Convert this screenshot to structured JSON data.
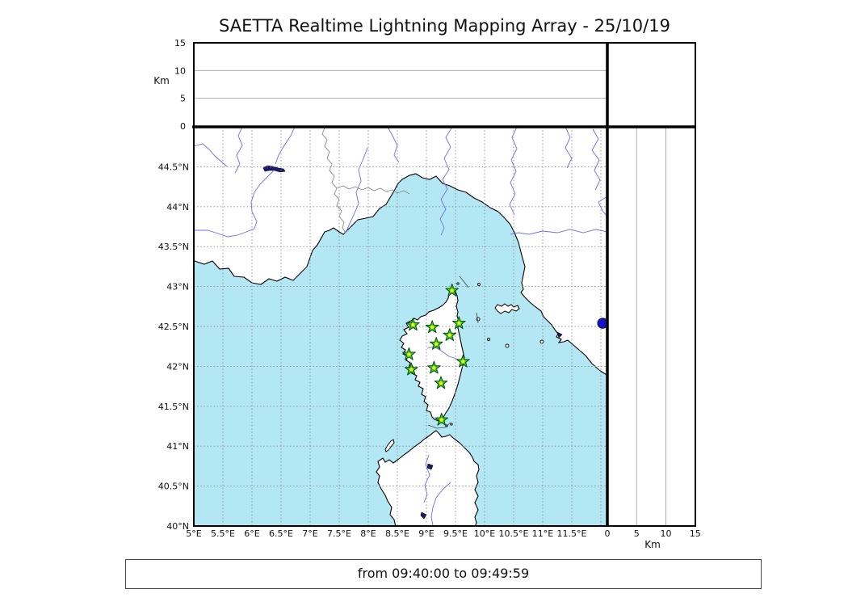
{
  "figure": {
    "title": "SAETTA Realtime Lightning Mapping Array - 25/10/19",
    "status_bar": "from 09:40:00 to 09:49:59"
  },
  "chart_data": {
    "type": "map",
    "title": "SAETTA Realtime Lightning Mapping Array - 25/10/19",
    "time_window": {
      "from": "09:40:00",
      "to": "09:49:59"
    },
    "extent": {
      "lon_min": 5.0,
      "lon_max": 12.1,
      "lat_min": 40.0,
      "lat_max": 45.0
    },
    "altitude_panel": {
      "axis_label": "Km",
      "range_km": [
        0,
        15
      ],
      "tick_labels": [
        "0",
        "5",
        "10",
        "15"
      ],
      "tick_values": [
        0,
        5,
        10,
        15
      ],
      "gridlines_km": [
        5,
        10
      ],
      "data_points": []
    },
    "right_panel": {
      "axis_label": "Km",
      "range_km": [
        0,
        15
      ],
      "tick_labels": [
        "0",
        "5",
        "10",
        "15"
      ],
      "tick_values": [
        0,
        5,
        10,
        15
      ],
      "gridlines_km": [
        5,
        10
      ],
      "data_points": []
    },
    "map_panel": {
      "lon_tick_labels": [
        {
          "label": "5°E",
          "lon": 5.0
        },
        {
          "label": "5.5°E",
          "lon": 5.5
        },
        {
          "label": "6°E",
          "lon": 6.0
        },
        {
          "label": "6.5°E",
          "lon": 6.5
        },
        {
          "label": "7°E",
          "lon": 7.0
        },
        {
          "label": "7.5°E",
          "lon": 7.5
        },
        {
          "label": "8°E",
          "lon": 8.0
        },
        {
          "label": "8.5°E",
          "lon": 8.5
        },
        {
          "label": "9°E",
          "lon": 9.0
        },
        {
          "label": "9.5°E",
          "lon": 9.5
        },
        {
          "label": "10°E",
          "lon": 10.0
        },
        {
          "label": "10.5°E",
          "lon": 10.5
        },
        {
          "label": "11°E",
          "lon": 11.0
        },
        {
          "label": "11.5°E",
          "lon": 11.5
        }
      ],
      "lat_tick_labels": [
        {
          "label": "40°N",
          "lat": 40.0
        },
        {
          "label": "40.5°N",
          "lat": 40.5
        },
        {
          "label": "41°N",
          "lat": 41.0
        },
        {
          "label": "41.5°N",
          "lat": 41.5
        },
        {
          "label": "42°N",
          "lat": 42.0
        },
        {
          "label": "42.5°N",
          "lat": 42.5
        },
        {
          "label": "43°N",
          "lat": 43.0
        },
        {
          "label": "43.5°N",
          "lat": 43.5
        },
        {
          "label": "44°N",
          "lat": 44.0
        },
        {
          "label": "44.5°N",
          "lat": 44.5
        }
      ],
      "lon_gridlines": [
        5.5,
        6.0,
        6.5,
        7.0,
        7.5,
        8.0,
        8.5,
        9.0,
        9.5,
        10.0,
        10.5,
        11.0,
        11.5,
        12.0
      ],
      "lat_gridlines": [
        40.5,
        41.0,
        41.5,
        42.0,
        42.5,
        43.0,
        43.5,
        44.0,
        44.5
      ],
      "stations": [
        {
          "lon": 9.44,
          "lat": 42.95
        },
        {
          "lon": 8.77,
          "lat": 42.52
        },
        {
          "lon": 9.1,
          "lat": 42.49
        },
        {
          "lon": 9.56,
          "lat": 42.54
        },
        {
          "lon": 9.4,
          "lat": 42.39
        },
        {
          "lon": 9.17,
          "lat": 42.28
        },
        {
          "lon": 8.7,
          "lat": 42.15
        },
        {
          "lon": 9.63,
          "lat": 42.06
        },
        {
          "lon": 8.74,
          "lat": 41.96
        },
        {
          "lon": 9.13,
          "lat": 41.98
        },
        {
          "lon": 9.25,
          "lat": 41.79
        },
        {
          "lon": 9.26,
          "lat": 41.33
        }
      ],
      "lightning_sources": [],
      "lake_marker": {
        "lon": 12.03,
        "lat": 42.54
      }
    },
    "colors": {
      "sea": "#b3e7f4",
      "land": "#ffffff",
      "coast": "#000000",
      "river": "#6f6fe8",
      "border": "#8a8a8a",
      "grid": "#8c8c8c",
      "panel_grid": "#9a9a9a",
      "station_fill": "#33cc33",
      "station_edge": "#0a4d0a",
      "station_center": "#ffee00",
      "lake_blue": "#1414cc",
      "lake_dark": "#1a1a70"
    }
  }
}
